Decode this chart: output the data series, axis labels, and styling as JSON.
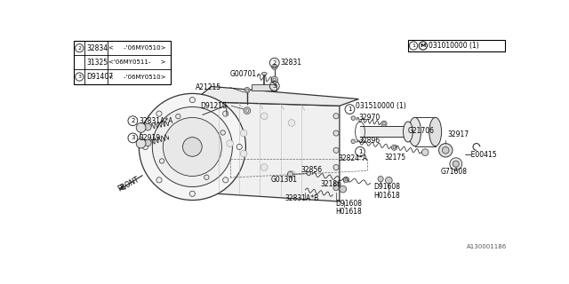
{
  "bg_color": "#ffffff",
  "fig_width": 6.4,
  "fig_height": 3.2,
  "dpi": 100,
  "diagram_id": "A130001186",
  "table_rows": [
    {
      "circle": "2",
      "part": "32834",
      "desc": "<     -'06MY0510>"
    },
    {
      "circle": "",
      "part": "31325",
      "desc": "<'06MY0511-     >"
    },
    {
      "circle": "3",
      "part": "D91407",
      "desc": "<     -'06MY0510>"
    }
  ],
  "font_size": 5.5,
  "lc": "#333333",
  "tc": "#000000",
  "gray": "#888888"
}
